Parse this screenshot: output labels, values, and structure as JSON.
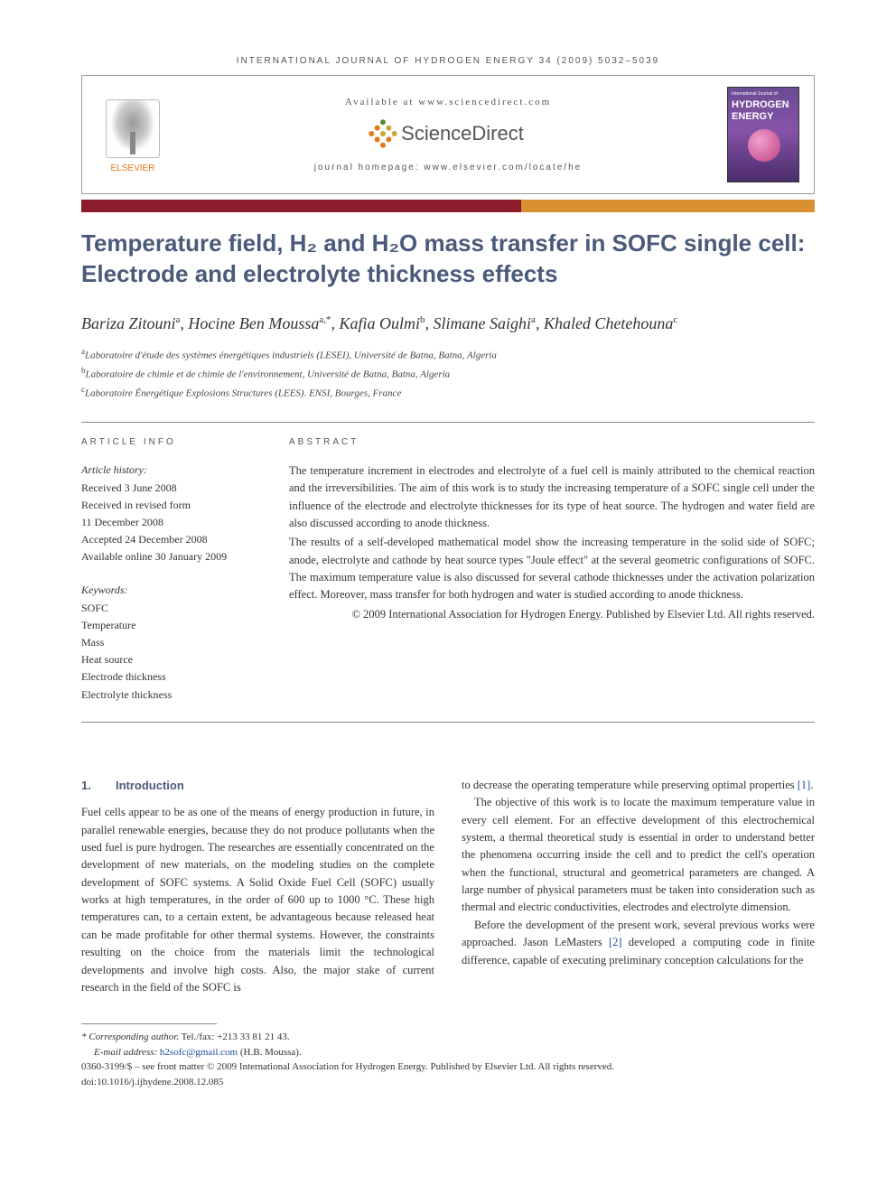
{
  "header": {
    "running_head": "INTERNATIONAL JOURNAL OF HYDROGEN ENERGY 34 (2009) 5032–5039"
  },
  "banner": {
    "elsevier_label": "ELSEVIER",
    "available_at": "Available at www.sciencedirect.com",
    "sd_brand": "ScienceDirect",
    "homepage": "journal homepage: www.elsevier.com/locate/he",
    "cover_journal_small": "International Journal of",
    "cover_journal_big1": "HYDROGEN",
    "cover_journal_big2": "ENERGY",
    "sd_dot_colors": [
      "#5a8a3a",
      "#c7a733",
      "#c7a733",
      "#e67817",
      "#c7a733",
      "#e67817",
      "#e67817",
      "#e67817",
      "#e67817"
    ]
  },
  "color_bar": {
    "left_color": "#8a1c2c",
    "right_color": "#d89030",
    "split_pct": 60
  },
  "title": "Temperature field, H₂ and H₂O mass transfer in SOFC single cell: Electrode and electrolyte thickness effects",
  "authors_html": "Bariza Zitouni<sup>a</sup>, Hocine Ben Moussa<sup>a,*</sup>, Kafia Oulmi<sup>b</sup>, Slimane Saighi<sup>a</sup>, Khaled Chetehouna<sup>c</sup>",
  "affiliations": [
    {
      "sup": "a",
      "text": "Laboratoire d'étude des systèmes énergétiques industriels (LESEI), Université de Batna, Batna, Algeria"
    },
    {
      "sup": "b",
      "text": "Laboratoire de chimie et de chimie de l'environnement, Université de Batna, Batna, Algeria"
    },
    {
      "sup": "c",
      "text": "Laboratoire Énergétique Explosions Structures (LEES). ENSI, Bourges, France"
    }
  ],
  "article_info": {
    "heading": "ARTICLE INFO",
    "history_label": "Article history:",
    "history": [
      "Received 3 June 2008",
      "Received in revised form",
      "11 December 2008",
      "Accepted 24 December 2008",
      "Available online 30 January 2009"
    ],
    "keywords_label": "Keywords:",
    "keywords": [
      "SOFC",
      "Temperature",
      "Mass",
      "Heat source",
      "Electrode thickness",
      "Electrolyte thickness"
    ]
  },
  "abstract": {
    "heading": "ABSTRACT",
    "para1": "The temperature increment in electrodes and electrolyte of a fuel cell is mainly attributed to the chemical reaction and the irreversibilities. The aim of this work is to study the increasing temperature of a SOFC single cell under the influence of the electrode and electrolyte thicknesses for its type of heat source. The hydrogen and water field are also discussed according to anode thickness.",
    "para2": "The results of a self-developed mathematical model show the increasing temperature in the solid side of SOFC; anode, electrolyte and cathode by heat source types \"Joule effect\" at the several geometric configurations of SOFC. The maximum temperature value is also discussed for several cathode thicknesses under the activation polarization effect. Moreover, mass transfer for both hydrogen and water is studied according to anode thickness.",
    "copyright": "© 2009 International Association for Hydrogen Energy. Published by Elsevier Ltd. All rights reserved."
  },
  "section1": {
    "num": "1.",
    "title": "Introduction"
  },
  "body": {
    "col1_p1": "Fuel cells appear to be as one of the means of energy production in future, in parallel renewable energies, because they do not produce pollutants when the used fuel is pure hydrogen. The researches are essentially concentrated on the development of new materials, on the modeling studies on the complete development of SOFC systems. A Solid Oxide Fuel Cell (SOFC) usually works at high temperatures, in the order of 600 up to 1000 °C. These high temperatures can, to a certain extent, be advantageous because released heat can be made profitable for other thermal systems. However, the constraints resulting on the choice from the materials limit the technological developments and involve high costs. Also, the major stake of current research in the field of the SOFC is",
    "col2_p1_a": "to decrease the operating temperature while preserving optimal properties ",
    "col2_p1_ref": "[1]",
    "col2_p1_b": ".",
    "col2_p2": "The objective of this work is to locate the maximum temperature value in every cell element. For an effective development of this electrochemical system, a thermal theoretical study is essential in order to understand better the phenomena occurring inside the cell and to predict the cell's operation when the functional, structural and geometrical parameters are changed. A large number of physical parameters must be taken into consideration such as thermal and electric conductivities, electrodes and electrolyte dimension.",
    "col2_p3_a": "Before the development of the present work, several previous works were approached. Jason LeMasters ",
    "col2_p3_ref": "[2]",
    "col2_p3_b": " developed a computing code in finite difference, capable of executing preliminary conception calculations for the"
  },
  "footnotes": {
    "corr_label": "* Corresponding author.",
    "corr_tel": " Tel./fax: +213 33 81 21 43.",
    "email_label": "E-mail address: ",
    "email": "h2sofc@gmail.com",
    "email_tail": " (H.B. Moussa).",
    "front_matter": "0360-3199/$ – see front matter © 2009 International Association for Hydrogen Energy. Published by Elsevier Ltd. All rights reserved.",
    "doi": "doi:10.1016/j.ijhydene.2008.12.085"
  },
  "colors": {
    "heading_blue": "#4a5a7a",
    "link_blue": "#2050a0",
    "elsevier_orange": "#e67817"
  }
}
